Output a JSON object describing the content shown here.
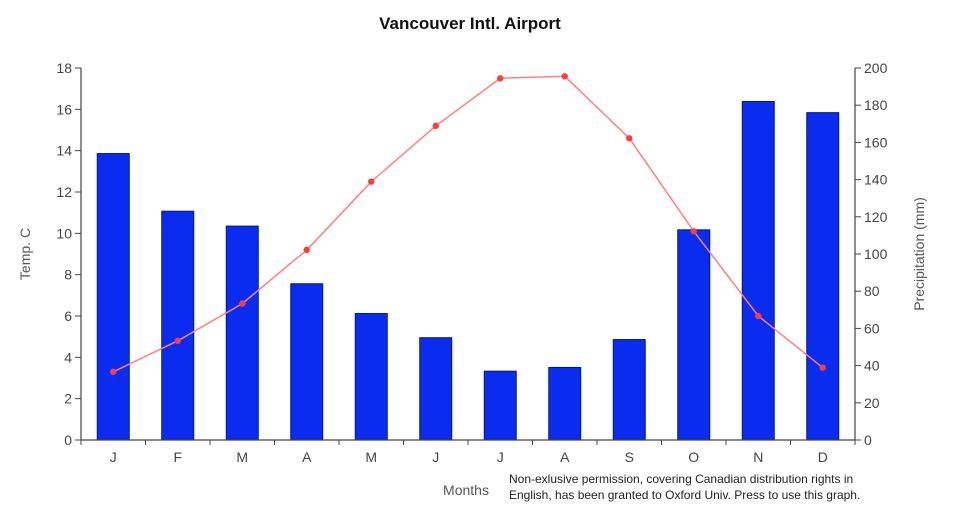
{
  "chart_data": {
    "type": "bar",
    "title": "Vancouver Intl. Airport",
    "xlabel": "Months",
    "categories": [
      "J",
      "F",
      "M",
      "A",
      "M",
      "J",
      "J",
      "A",
      "S",
      "O",
      "N",
      "D"
    ],
    "y_left": {
      "label": "Temp. C",
      "range": [
        0,
        18
      ],
      "ticks": [
        0,
        2,
        4,
        6,
        8,
        10,
        12,
        14,
        16,
        18
      ]
    },
    "y_right": {
      "label": "Precipitation (mm)",
      "range": [
        0,
        200
      ],
      "ticks": [
        0,
        20,
        40,
        60,
        80,
        100,
        120,
        140,
        160,
        180,
        200
      ]
    },
    "series": [
      {
        "type": "bar",
        "axis": "right",
        "color": "#0a2cf0",
        "values": [
          154,
          123,
          115,
          84,
          68,
          55,
          37,
          39,
          54,
          113,
          182,
          176
        ]
      },
      {
        "type": "line",
        "axis": "left",
        "color": "#ff3b3b",
        "values": [
          3.3,
          4.8,
          6.6,
          9.2,
          12.5,
          15.2,
          17.5,
          17.6,
          14.6,
          10.1,
          6.0,
          3.5
        ]
      }
    ],
    "grid": false
  },
  "note": {
    "line1": "Non-exlusive permission, covering Canadian distribution rights in",
    "line2": "English, has been granted to Oxford Univ. Press to use this graph."
  }
}
